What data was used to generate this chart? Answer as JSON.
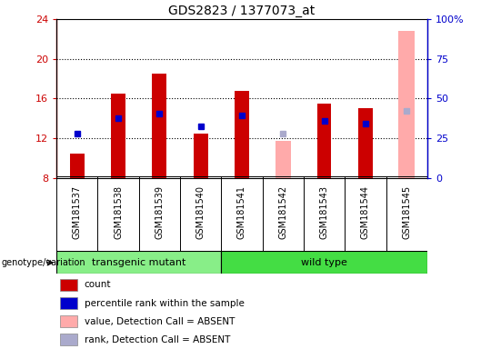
{
  "title": "GDS2823 / 1377073_at",
  "samples": [
    "GSM181537",
    "GSM181538",
    "GSM181539",
    "GSM181540",
    "GSM181541",
    "GSM181542",
    "GSM181543",
    "GSM181544",
    "GSM181545"
  ],
  "count_values": [
    10.5,
    16.5,
    18.5,
    12.5,
    16.8,
    null,
    15.5,
    15.0,
    null
  ],
  "count_color": "#cc0000",
  "percentile_values": [
    12.5,
    14.0,
    14.5,
    13.2,
    14.3,
    null,
    13.8,
    13.5,
    null
  ],
  "percentile_color": "#0000cc",
  "absent_value_values": [
    null,
    null,
    null,
    null,
    null,
    11.7,
    null,
    null,
    22.8
  ],
  "absent_rank_values": [
    null,
    null,
    null,
    null,
    null,
    12.5,
    null,
    null,
    14.8
  ],
  "absent_value_color": "#ffaaaa",
  "absent_rank_color": "#aaaacc",
  "ylim_left": [
    8,
    24
  ],
  "ylim_right": [
    0,
    100
  ],
  "yticks_left": [
    8,
    12,
    16,
    20,
    24
  ],
  "ytick_labels_right": [
    "0",
    "25",
    "50",
    "75",
    "100%"
  ],
  "groups": [
    {
      "label": "transgenic mutant",
      "start": 0,
      "end": 4,
      "color": "#88ee88"
    },
    {
      "label": "wild type",
      "start": 4,
      "end": 9,
      "color": "#44dd44"
    }
  ],
  "group_label": "genotype/variation",
  "bar_width": 0.35,
  "marker_size": 5,
  "background_color": "#ffffff",
  "tick_label_area_color": "#cccccc",
  "legend_items": [
    {
      "label": "count",
      "color": "#cc0000"
    },
    {
      "label": "percentile rank within the sample",
      "color": "#0000cc"
    },
    {
      "label": "value, Detection Call = ABSENT",
      "color": "#ffaaaa"
    },
    {
      "label": "rank, Detection Call = ABSENT",
      "color": "#aaaacc"
    }
  ]
}
